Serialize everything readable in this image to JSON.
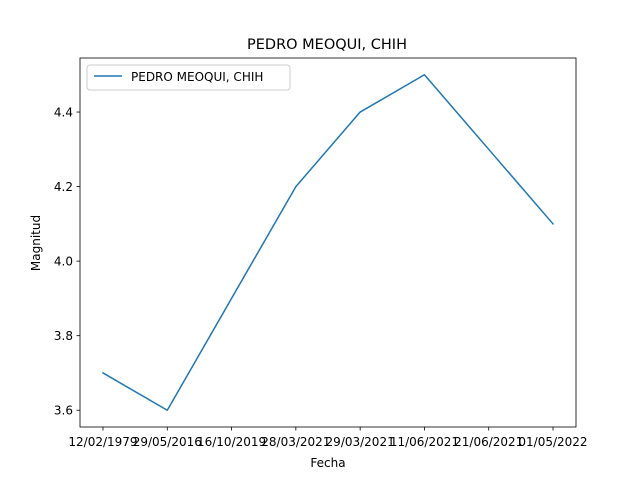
{
  "chart_data": {
    "type": "line",
    "title": "PEDRO MEOQUI, CHIH",
    "xlabel": "Fecha",
    "ylabel": "Magnitud",
    "categories": [
      "12/02/1979",
      "29/05/2016",
      "16/10/2019",
      "28/03/2021",
      "29/03/2021",
      "11/06/2021",
      "21/06/2021",
      "01/05/2022"
    ],
    "series": [
      {
        "name": "PEDRO MEOQUI, CHIH",
        "color": "#1f77b4",
        "values": [
          3.7,
          3.6,
          3.9,
          4.2,
          4.4,
          4.5,
          4.3,
          4.1
        ]
      }
    ],
    "ylim": [
      3.555,
      4.545
    ],
    "yticks": [
      "3.6",
      "3.8",
      "4.0",
      "4.2",
      "4.4"
    ],
    "grid": false,
    "legend_position": "top-left"
  }
}
